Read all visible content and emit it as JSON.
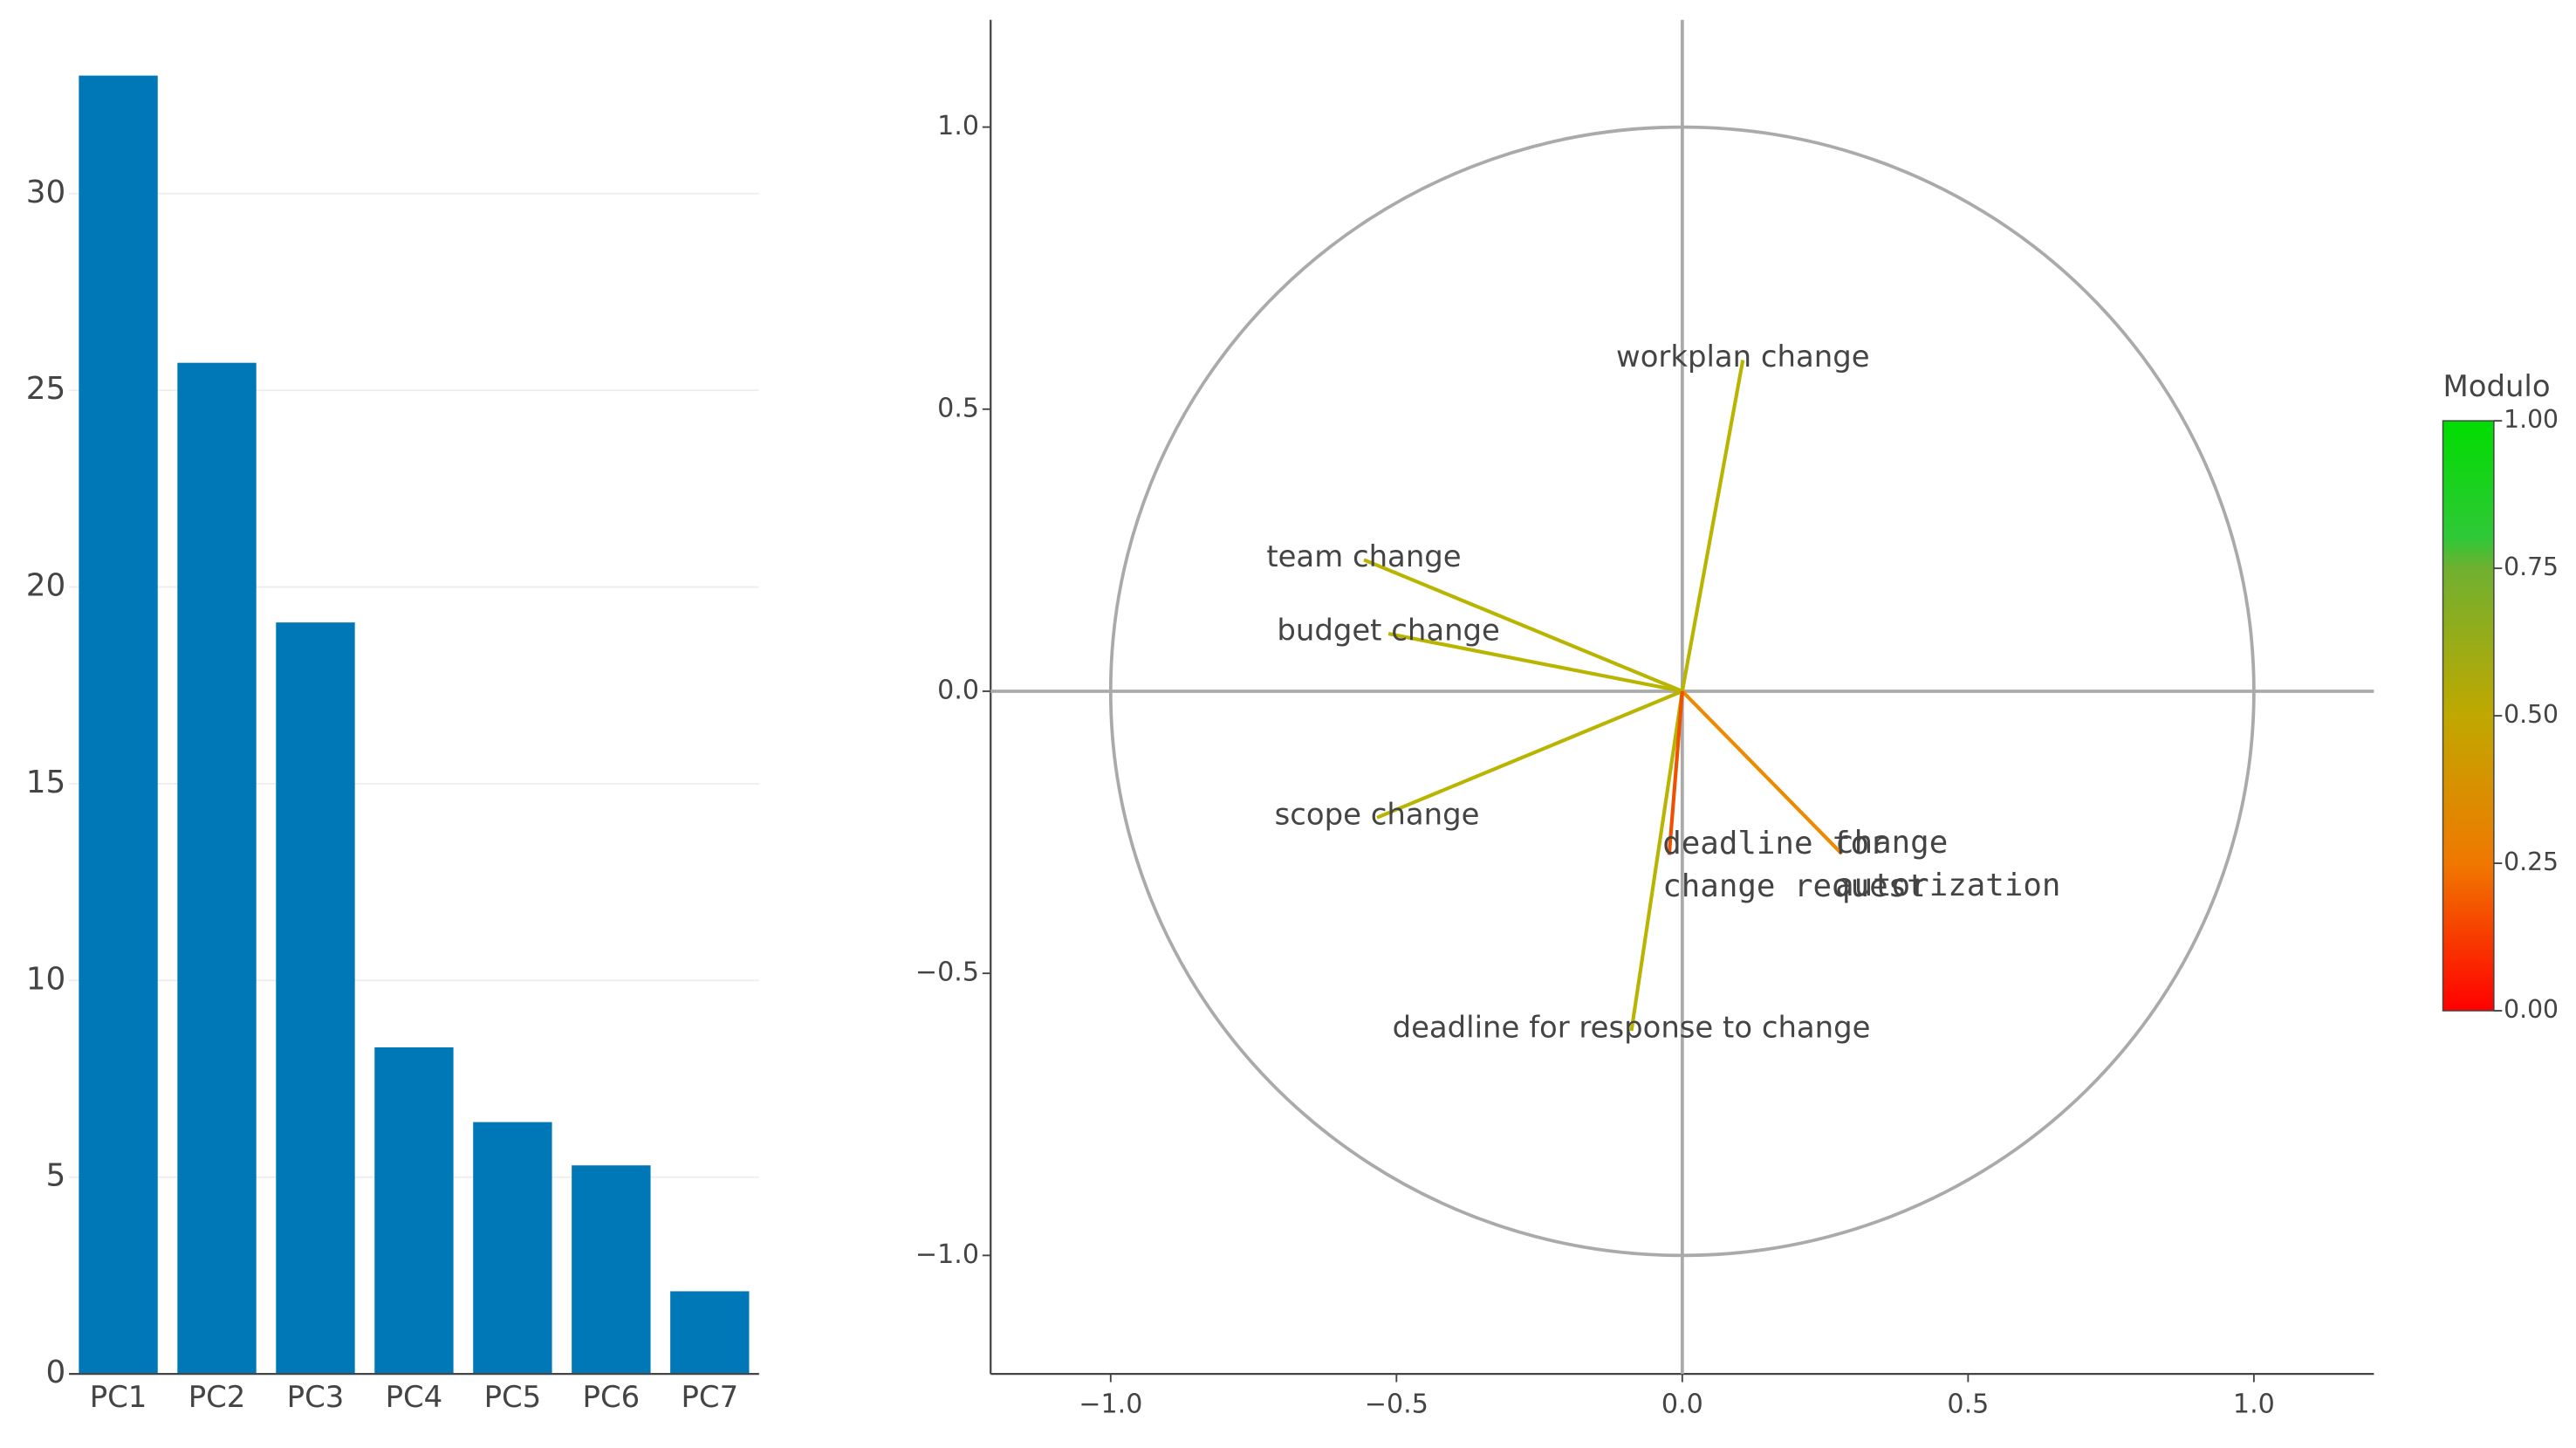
{
  "chart_data": [
    {
      "type": "bar",
      "categories": [
        "PC1",
        "PC2",
        "PC3",
        "PC4",
        "PC5",
        "PC6",
        "PC7"
      ],
      "values": [
        33.0,
        25.7,
        19.1,
        8.3,
        6.4,
        5.3,
        2.1
      ],
      "color": "#0077b6",
      "ylim": [
        0,
        34.5
      ],
      "yticks": [
        0,
        5,
        10,
        15,
        20,
        25,
        30
      ],
      "grid": true
    },
    {
      "type": "vector",
      "xlim": [
        -1.21,
        1.21
      ],
      "ylim": [
        -1.21,
        1.19
      ],
      "xticks": [
        {
          "value": -1,
          "label": "−1.0"
        },
        {
          "value": -0.5,
          "label": "−0.5"
        },
        {
          "value": 0,
          "label": "0.0"
        },
        {
          "value": 0.5,
          "label": "0.5"
        },
        {
          "value": 1,
          "label": "1.0"
        }
      ],
      "yticks": [
        {
          "value": -1,
          "label": "−1.0"
        },
        {
          "value": -0.5,
          "label": "−0.5"
        },
        {
          "value": 0,
          "label": "0.0"
        },
        {
          "value": 0.5,
          "label": "0.5"
        },
        {
          "value": 1,
          "label": "1.0"
        }
      ],
      "unit_circle": true,
      "vectors": [
        {
          "label_lines": [
            "workplan change"
          ],
          "x": 0.106,
          "y": 0.587,
          "color": "#b8b400",
          "label_font": "sans-serif"
        },
        {
          "label_lines": [
            "team change"
          ],
          "x": -0.557,
          "y": 0.233,
          "color": "#b8b400",
          "label_font": "sans-serif"
        },
        {
          "label_lines": [
            "budget change"
          ],
          "x": -0.514,
          "y": 0.102,
          "color": "#b8b400",
          "label_font": "sans-serif"
        },
        {
          "label_lines": [
            "scope change"
          ],
          "x": -0.534,
          "y": -0.224,
          "color": "#b8b400",
          "label_font": "sans-serif"
        },
        {
          "label_lines": [
            "deadline for response to change"
          ],
          "x": -0.089,
          "y": -0.602,
          "color": "#b8b400",
          "label_font": "sans-serif"
        },
        {
          "label_lines": [
            "change",
            "autorization"
          ],
          "x": 0.279,
          "y": -0.288,
          "color": "#ec8a00",
          "label_font": "monospace"
        },
        {
          "label_lines": [
            "deadline for",
            "change request"
          ],
          "x": -0.023,
          "y": -0.29,
          "color": "#f05000",
          "label_font": "monospace"
        }
      ],
      "colorbar": {
        "title": "Modulo",
        "range": [
          0,
          1
        ],
        "ticks": [
          {
            "value": 0,
            "label": "0.00"
          },
          {
            "value": 0.25,
            "label": "0.25"
          },
          {
            "value": 0.5,
            "label": "0.50"
          },
          {
            "value": 0.75,
            "label": "0.75"
          },
          {
            "value": 1,
            "label": "1.00"
          }
        ],
        "colorscale": [
          [
            0,
            "#ff0000"
          ],
          [
            0.25,
            "#f07800"
          ],
          [
            0.5,
            "#c0a800"
          ],
          [
            0.75,
            "#70b030"
          ],
          [
            0.8,
            "#30c838"
          ],
          [
            1,
            "#00dd00"
          ]
        ]
      }
    }
  ]
}
